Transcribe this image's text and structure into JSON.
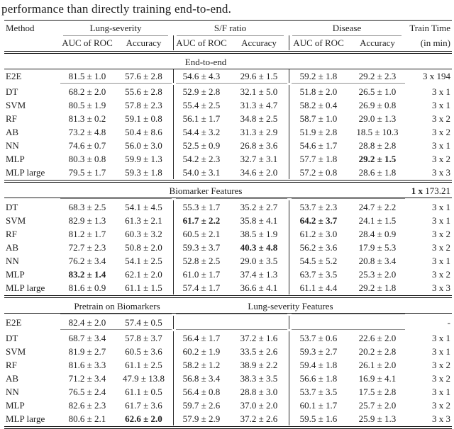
{
  "caption": "performance than directly training end-to-end.",
  "colors": {
    "text": "#212121",
    "heavy_rule": "#1c1c1c",
    "light_rule": "#8f8f8f",
    "background": "#ffffff"
  },
  "header": {
    "method_label": "Method",
    "group_labels": [
      "Lung-severity",
      "S/F ratio",
      "Disease"
    ],
    "metric_labels": [
      "AUC of ROC",
      "Accuracy",
      "AUC of ROC",
      "Accuracy",
      "AUC of ROC",
      "Accuracy"
    ],
    "train_time_label": "Train Time",
    "train_time_unit": "(in min)"
  },
  "sections": [
    {
      "titles": [
        {
          "text": "End-to-end",
          "span": "full"
        }
      ],
      "train_note": null,
      "divider_before_rows": false,
      "rows": [
        {
          "method": "E2E",
          "values": [
            "81.5 ± 1.0",
            "57.6 ± 2.8",
            "54.6 ± 4.3",
            "29.6 ± 1.5",
            "59.2 ± 1.8",
            "29.2 ± 2.3"
          ],
          "bold": [
            false,
            false,
            false,
            false,
            false,
            false
          ],
          "train": "3 x 194",
          "rule_below": true
        },
        {
          "method": "DT",
          "values": [
            "68.2 ± 2.0",
            "55.6 ± 2.8",
            "52.9 ± 2.8",
            "32.1 ± 5.0",
            "51.8 ± 2.0",
            "26.5 ± 1.0"
          ],
          "bold": [
            false,
            false,
            false,
            false,
            false,
            false
          ],
          "train": "3 x 1",
          "rule_below": false
        },
        {
          "method": "SVM",
          "values": [
            "80.5 ± 1.9",
            "57.8 ± 2.3",
            "55.4 ± 2.5",
            "31.3 ± 4.7",
            "58.2 ± 0.4",
            "26.9 ± 0.8"
          ],
          "bold": [
            false,
            false,
            false,
            false,
            false,
            false
          ],
          "train": "3 x 1",
          "rule_below": false
        },
        {
          "method": "RF",
          "values": [
            "81.3 ± 0.2",
            "59.1 ± 0.8",
            "56.1 ± 1.7",
            "34.8 ± 2.5",
            "58.7 ± 1.0",
            "29.0 ± 1.3"
          ],
          "bold": [
            false,
            false,
            false,
            false,
            false,
            false
          ],
          "train": "3 x 2",
          "rule_below": false
        },
        {
          "method": "AB",
          "values": [
            "73.2 ± 4.8",
            "50.4 ± 8.6",
            "54.4 ± 3.2",
            "31.3 ± 2.9",
            "51.9 ± 2.8",
            "18.5 ± 10.3"
          ],
          "bold": [
            false,
            false,
            false,
            false,
            false,
            false
          ],
          "train": "3 x 2",
          "rule_below": false
        },
        {
          "method": "NN",
          "values": [
            "74.6 ± 0.7",
            "56.0 ± 3.0",
            "52.5 ± 0.9",
            "26.8 ± 3.6",
            "54.6 ± 1.7",
            "28.8 ± 2.8"
          ],
          "bold": [
            false,
            false,
            false,
            false,
            false,
            false
          ],
          "train": "3 x 1",
          "rule_below": false
        },
        {
          "method": "MLP",
          "values": [
            "80.3 ± 0.8",
            "59.9 ± 1.3",
            "54.2 ± 2.3",
            "32.7 ± 3.1",
            "57.7 ± 1.8",
            "29.2 ± 1.5"
          ],
          "bold": [
            false,
            false,
            false,
            false,
            false,
            true
          ],
          "train": "3 x 2",
          "rule_below": false
        },
        {
          "method": "MLP large",
          "values": [
            "79.5 ± 1.7",
            "59.3 ± 1.8",
            "54.0 ± 3.1",
            "34.6 ± 2.0",
            "57.2 ± 0.8",
            "28.6 ± 1.8"
          ],
          "bold": [
            false,
            false,
            false,
            false,
            false,
            false
          ],
          "train": "3 x 3",
          "rule_below": false
        }
      ]
    },
    {
      "titles": [
        {
          "text": "Biomarker Features",
          "span": "full"
        }
      ],
      "train_note": {
        "bold_part": "1 x",
        "normal_part": "173.21"
      },
      "divider_before_rows": true,
      "rows": [
        {
          "method": "DT",
          "values": [
            "68.3 ± 2.5",
            "54.1 ± 4.5",
            "55.3 ± 1.7",
            "35.2 ± 2.7",
            "53.7 ± 2.3",
            "24.7 ± 2.2"
          ],
          "bold": [
            false,
            false,
            false,
            false,
            false,
            false
          ],
          "train": "3 x 1",
          "rule_below": false
        },
        {
          "method": "SVM",
          "values": [
            "82.9 ± 1.3",
            "61.3 ± 2.1",
            "61.7 ± 2.2",
            "35.8 ± 4.1",
            "64.2 ± 3.7",
            "24.1 ± 1.5"
          ],
          "bold": [
            false,
            false,
            true,
            false,
            true,
            false
          ],
          "train": "3 x 1",
          "rule_below": false
        },
        {
          "method": "RF",
          "values": [
            "81.2 ± 1.7",
            "60.3 ± 3.2",
            "60.5 ± 2.1",
            "38.5 ± 1.9",
            "61.2 ± 3.0",
            "28.4 ± 0.9"
          ],
          "bold": [
            false,
            false,
            false,
            false,
            false,
            false
          ],
          "train": "3 x 2",
          "rule_below": false
        },
        {
          "method": "AB",
          "values": [
            "72.7 ± 2.3",
            "50.8 ± 2.0",
            "59.3 ± 3.7",
            "40.3 ± 4.8",
            "56.2 ± 3.6",
            "17.9 ± 5.3"
          ],
          "bold": [
            false,
            false,
            false,
            true,
            false,
            false
          ],
          "train": "3 x 2",
          "rule_below": false
        },
        {
          "method": "NN",
          "values": [
            "76.2 ± 3.4",
            "54.1 ± 2.5",
            "52.8 ± 2.5",
            "29.0 ± 3.5",
            "54.5 ± 5.2",
            "20.8 ± 3.4"
          ],
          "bold": [
            false,
            false,
            false,
            false,
            false,
            false
          ],
          "train": "3 x 1",
          "rule_below": false
        },
        {
          "method": "MLP",
          "values": [
            "83.2 ± 1.4",
            "62.1 ± 2.0",
            "61.0 ± 1.7",
            "37.4 ± 1.3",
            "63.7 ± 3.5",
            "25.3 ± 2.0"
          ],
          "bold": [
            true,
            false,
            false,
            false,
            false,
            false
          ],
          "train": "3 x 2",
          "rule_below": false
        },
        {
          "method": "MLP large",
          "values": [
            "81.6 ± 0.9",
            "61.1 ± 1.5",
            "57.4 ± 1.7",
            "36.6 ± 4.1",
            "61.1 ± 4.4",
            "29.2 ± 1.8"
          ],
          "bold": [
            false,
            false,
            false,
            false,
            false,
            false
          ],
          "train": "3 x 3",
          "rule_below": false
        }
      ]
    },
    {
      "titles": [
        {
          "text": "Pretrain on Biomarkers",
          "span": "left"
        },
        {
          "text": "Lung-severity Features",
          "span": "right"
        }
      ],
      "train_note": null,
      "divider_before_rows": true,
      "rows": [
        {
          "method": "E2E",
          "values": [
            "82.4 ± 2.0",
            "57.4 ± 0.5",
            "",
            "",
            "",
            ""
          ],
          "bold": [
            false,
            false,
            false,
            false,
            false,
            false
          ],
          "train": "-",
          "rule_below": true
        },
        {
          "method": "DT",
          "values": [
            "68.7 ± 3.4",
            "57.8 ± 3.7",
            "56.4 ± 1.7",
            "37.2 ± 1.6",
            "53.7 ± 0.6",
            "22.6 ± 2.0"
          ],
          "bold": [
            false,
            false,
            false,
            false,
            false,
            false
          ],
          "train": "3 x 1",
          "rule_below": false
        },
        {
          "method": "SVM",
          "values": [
            "81.9 ± 2.7",
            "60.5 ± 3.6",
            "60.2 ± 1.9",
            "33.5 ± 2.6",
            "59.3 ± 2.7",
            "20.2 ± 2.8"
          ],
          "bold": [
            false,
            false,
            false,
            false,
            false,
            false
          ],
          "train": "3 x 1",
          "rule_below": false
        },
        {
          "method": "RF",
          "values": [
            "81.6 ± 3.3",
            "61.1 ± 2.5",
            "58.2 ± 1.2",
            "38.9 ± 2.2",
            "59.4 ± 1.8",
            "26.1 ± 2.0"
          ],
          "bold": [
            false,
            false,
            false,
            false,
            false,
            false
          ],
          "train": "3 x 2",
          "rule_below": false
        },
        {
          "method": "AB",
          "values": [
            "71.2 ± 3.4",
            "47.9 ± 13.8",
            "56.8 ± 3.4",
            "38.3 ± 3.5",
            "56.6 ± 1.8",
            "16.9 ± 4.1"
          ],
          "bold": [
            false,
            false,
            false,
            false,
            false,
            false
          ],
          "train": "3 x 2",
          "rule_below": false
        },
        {
          "method": "NN",
          "values": [
            "76.5 ± 2.4",
            "61.1 ± 0.5",
            "56.4 ± 0.8",
            "28.8 ± 3.0",
            "53.7 ± 3.5",
            "17.5 ± 2.8"
          ],
          "bold": [
            false,
            false,
            false,
            false,
            false,
            false
          ],
          "train": "3 x 1",
          "rule_below": false
        },
        {
          "method": "MLP",
          "values": [
            "82.6 ± 2.3",
            "61.7 ± 3.6",
            "59.7 ± 2.6",
            "37.0 ± 2.0",
            "60.1 ± 1.7",
            "25.7 ± 2.0"
          ],
          "bold": [
            false,
            false,
            false,
            false,
            false,
            false
          ],
          "train": "3 x 2",
          "rule_below": false
        },
        {
          "method": "MLP large",
          "values": [
            "80.6 ± 2.1",
            "62.6 ± 2.0",
            "57.9 ± 2.9",
            "37.2 ± 2.6",
            "59.5 ± 1.6",
            "25.9 ± 1.3"
          ],
          "bold": [
            false,
            true,
            false,
            false,
            false,
            false
          ],
          "train": "3 x 3",
          "rule_below": false
        }
      ]
    }
  ]
}
